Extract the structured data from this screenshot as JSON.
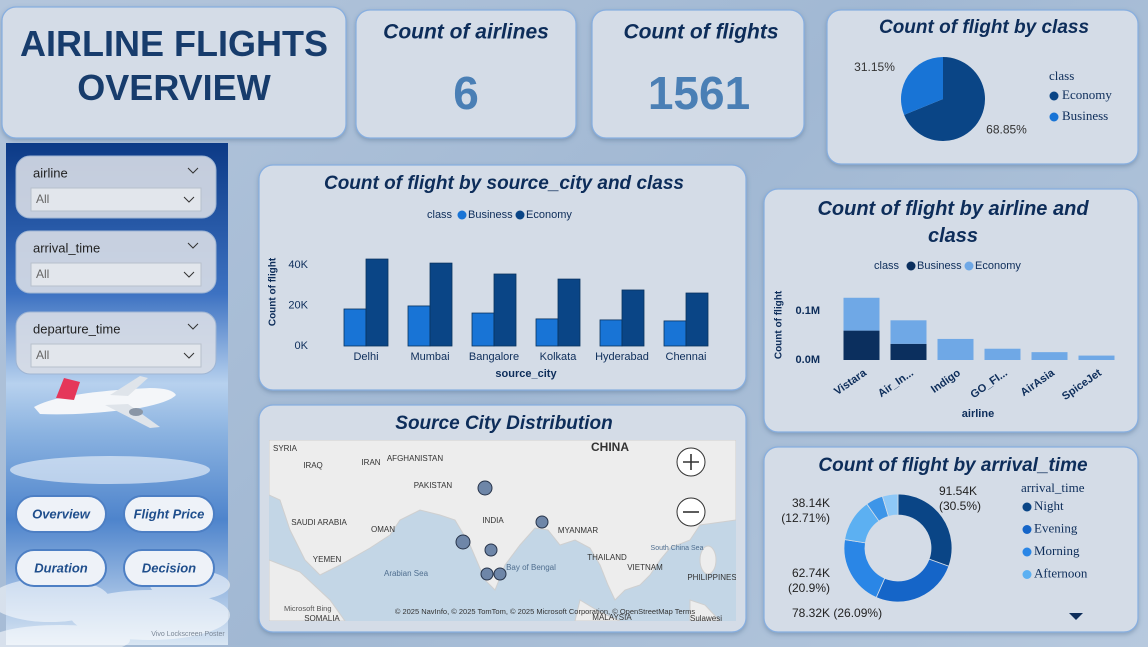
{
  "header": {
    "title": "AIRLINE FLIGHTS OVERVIEW"
  },
  "cards": [
    {
      "label": "Count of airlines",
      "value": 6
    },
    {
      "label": "Count of flights",
      "value": 1561
    }
  ],
  "slicers": [
    {
      "label": "airline",
      "selection": "All"
    },
    {
      "label": "arrival_time",
      "selection": "All"
    },
    {
      "label": "departure_time",
      "selection": "All"
    }
  ],
  "buttons": [
    "Overview",
    "Flight Price",
    "Duration",
    "Decision"
  ],
  "watermark": "Vivo Lockscreen Poster",
  "map": {
    "title": "Source City Distribution",
    "labels": [
      "SYRIA",
      "IRAQ",
      "IRAN",
      "AFGHANISTAN",
      "PAKISTAN",
      "CHINA",
      "SAUDI ARABIA",
      "OMAN",
      "YEMEN",
      "INDIA",
      "MYANMAR",
      "THAILAND",
      "VIETNAM",
      "PHILIPPINES",
      "Arabian Sea",
      "Bay of Bengal",
      "South China Sea",
      "SOMALIA",
      "MALAYSIA",
      "Sulawesi"
    ],
    "attribution": "© 2025 NavInfo, © 2025 TomTom, © 2025 Microsoft Corporation, © OpenStreetMap  Terms",
    "logo": "Microsoft Bing"
  },
  "chart_data": [
    {
      "type": "pie",
      "title": "Count of flight by class",
      "legend_title": "class",
      "categories": [
        "Economy",
        "Business"
      ],
      "values": [
        68.85,
        31.15
      ],
      "value_labels": [
        "68.85%",
        "31.15%"
      ],
      "colors": [
        "#0a4586",
        "#1874d6"
      ]
    },
    {
      "type": "bar",
      "title": "Count of flight by source_city and class",
      "x_label": "source_city",
      "y_label": "Count of flight",
      "legend_title": "class",
      "categories": [
        "Delhi",
        "Mumbai",
        "Bangalore",
        "Kolkata",
        "Hyderabad",
        "Chennai"
      ],
      "series": [
        {
          "name": "Business",
          "color": "#1874d6",
          "values": [
            18300,
            19800,
            16300,
            13400,
            12900,
            12400
          ]
        },
        {
          "name": "Economy",
          "color": "#0a4586",
          "values": [
            43000,
            41000,
            35600,
            33100,
            27700,
            26200
          ]
        }
      ],
      "ylim": [
        0,
        45000
      ],
      "yticks": [
        {
          "value": 0,
          "label": "0K"
        },
        {
          "value": 20000,
          "label": "20K"
        },
        {
          "value": 40000,
          "label": "40K"
        }
      ]
    },
    {
      "type": "stacked_bar",
      "title": "Count of flight by airline and class",
      "x_label": "airline",
      "y_label": "Count of flight",
      "legend_title": "class",
      "categories": [
        "Vistara",
        "Air_In...",
        "Indigo",
        "GO_FI...",
        "AirAsia",
        "SpiceJet"
      ],
      "series": [
        {
          "name": "Business",
          "color": "#0b2f5e",
          "values": [
            60000,
            33000,
            null,
            null,
            null,
            null
          ]
        },
        {
          "name": "Economy",
          "color": "#6fa8e6",
          "values": [
            67000,
            48000,
            43000,
            23000,
            16000,
            9000
          ]
        }
      ],
      "ylim": [
        0,
        140000
      ],
      "yticks": [
        {
          "value": 0,
          "label": "0.0M"
        },
        {
          "value": 100000,
          "label": "0.1M"
        }
      ]
    },
    {
      "type": "donut",
      "title": "Count of flight by arrival_time",
      "legend_title": "arrival_time",
      "categories": [
        "Night",
        "Evening",
        "Morning",
        "Afternoon",
        null,
        null
      ],
      "values": [
        91540,
        78320,
        62740,
        38140,
        15400,
        14000
      ],
      "value_labels": [
        "91.54K (30.5%)",
        "78.32K (26.09%)",
        "62.74K (20.9%)",
        "38.14K (12.71%)",
        null,
        null
      ],
      "colors": [
        "#0a4586",
        "#1565c8",
        "#2a86e6",
        "#5cb0f2",
        "#3d95e8",
        "#8ec8f7"
      ]
    }
  ]
}
